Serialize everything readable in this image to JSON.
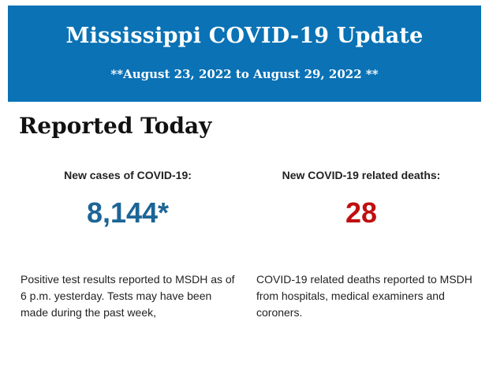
{
  "banner": {
    "title": "Mississippi COVID-19 Update",
    "date_range": "**August 23, 2022 to August 29, 2022 **",
    "background_color": "#0a72b5"
  },
  "section": {
    "title": "Reported Today"
  },
  "cases": {
    "label": "New cases of COVID-19:",
    "value": "8,144*",
    "value_color": "#1c6596",
    "note": "Positive test results reported to MSDH as of 6 p.m. yesterday. Tests may have been made during the past week,"
  },
  "deaths": {
    "label": "New COVID-19 related deaths:",
    "value": "28",
    "value_color": "#c00f0f",
    "note": "COVID-19 related deaths reported to MSDH from hospitals, medical examiners and coroners."
  }
}
